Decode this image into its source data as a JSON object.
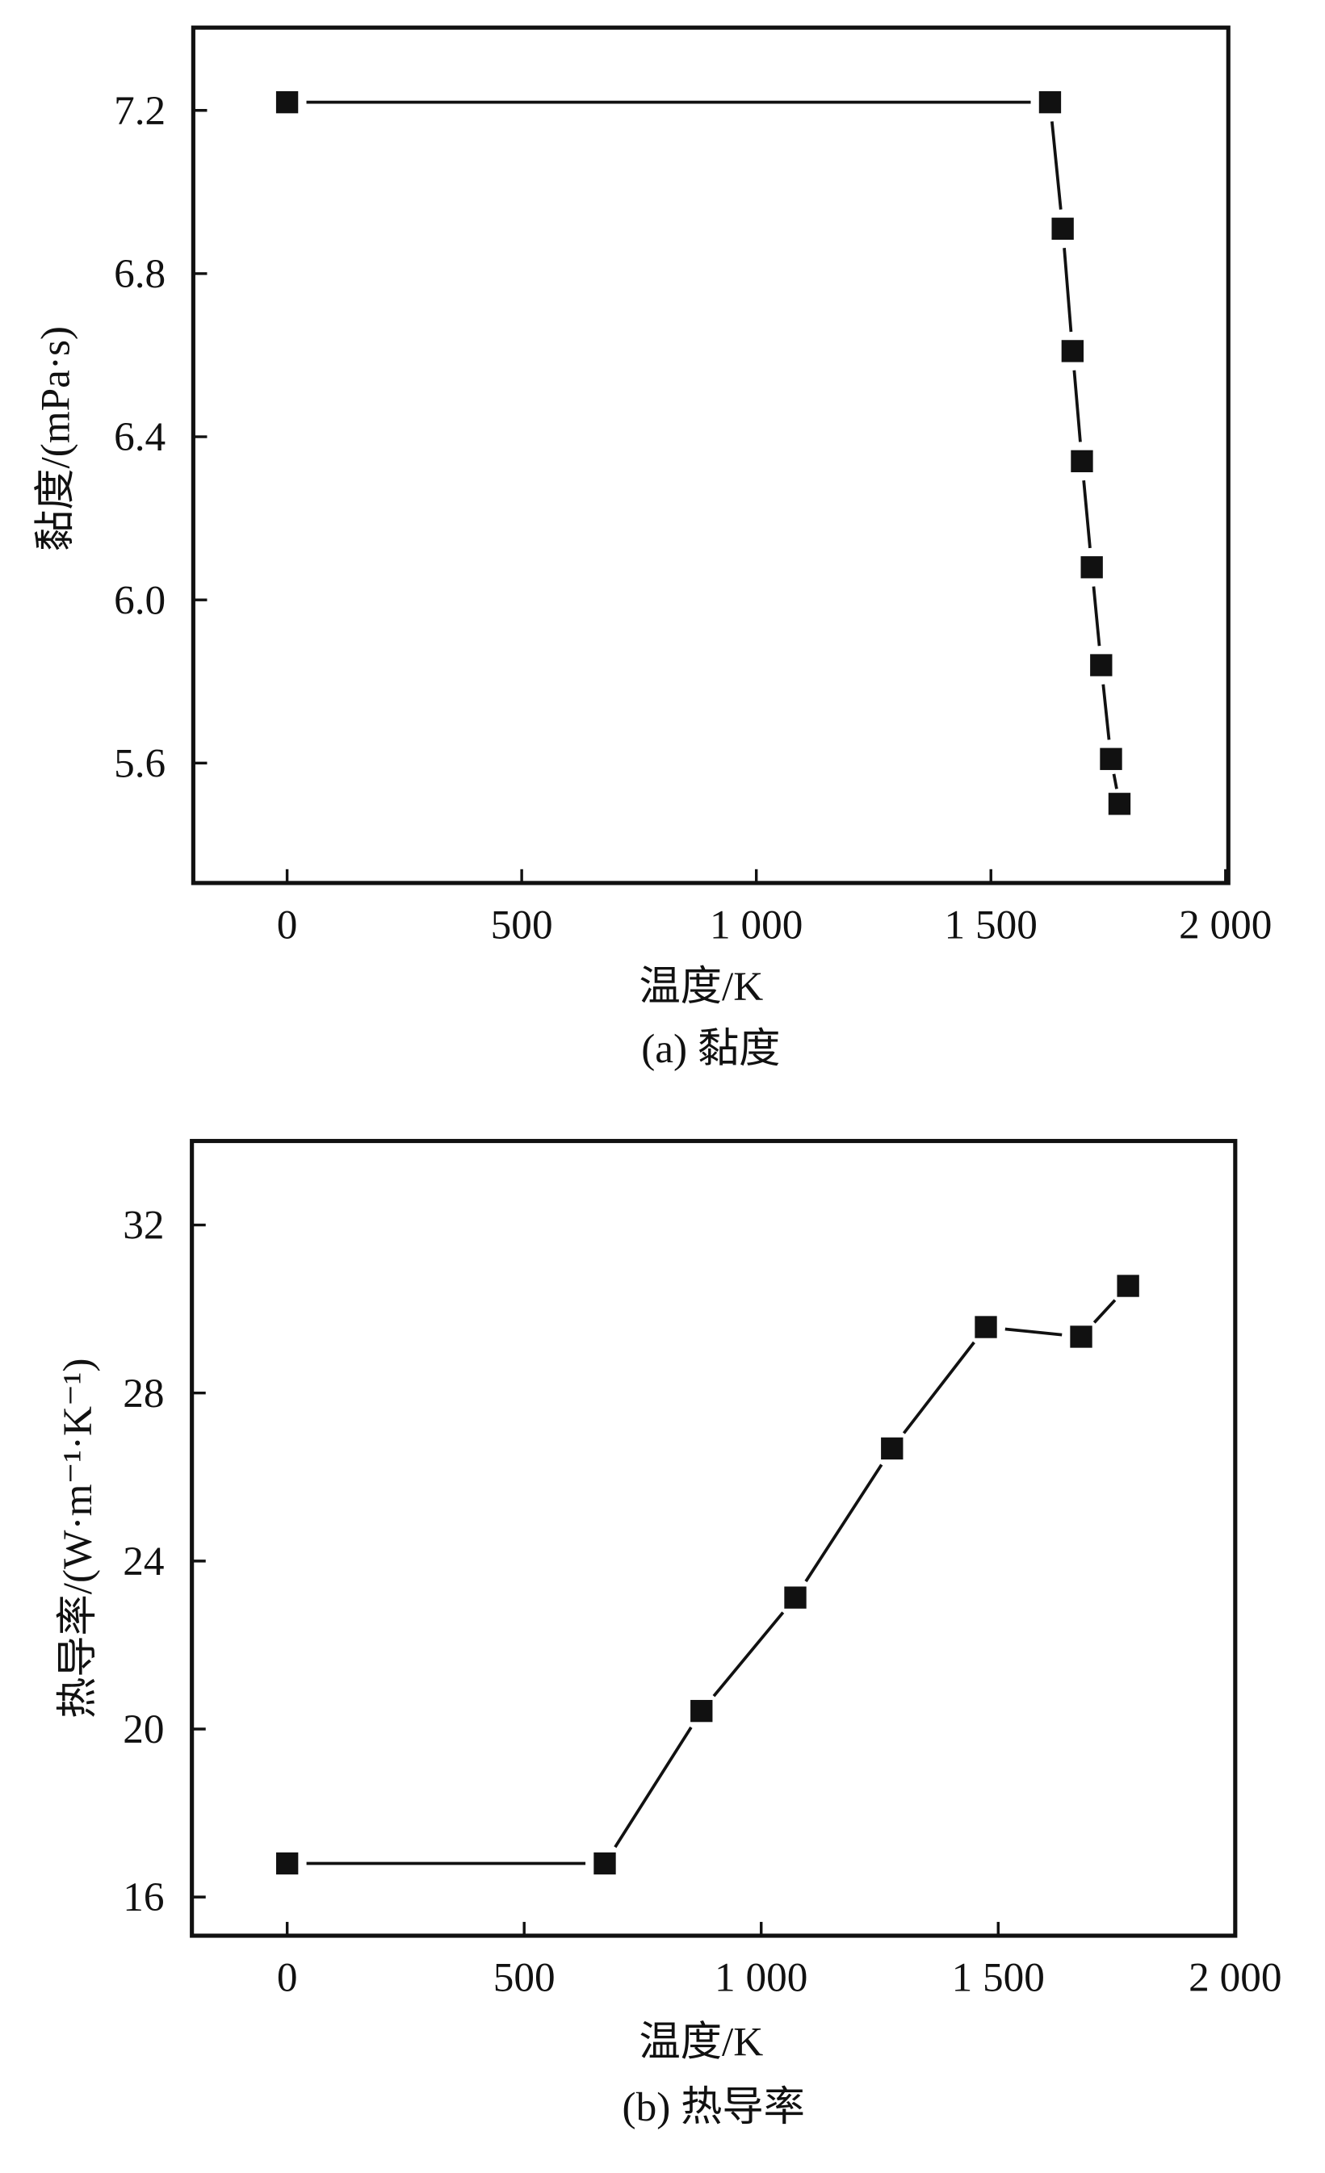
{
  "chart_data": [
    {
      "type": "line",
      "title": "(a) 黏度",
      "xlabel": "温度/K",
      "ylabel": "黏度/(mPa·s)",
      "xlim": [
        -200,
        2006
      ],
      "ylim": [
        5.306,
        7.403
      ],
      "xticks": [
        0,
        500,
        1000,
        1500,
        2000
      ],
      "xtick_labels": [
        "0",
        "500",
        "1 000",
        "1 500",
        "2 000"
      ],
      "yticks": [
        5.6,
        6.0,
        6.4,
        6.8,
        7.2
      ],
      "ytick_labels": [
        "5.6",
        "6.0",
        "6.4",
        "6.8",
        "7.2"
      ],
      "grid": false,
      "series": [
        {
          "name": "黏度",
          "marker": "square",
          "x": [
            0,
            1626,
            1653,
            1674,
            1694,
            1715,
            1735,
            1756,
            1774
          ],
          "y": [
            7.22,
            7.22,
            6.91,
            6.61,
            6.34,
            6.08,
            5.84,
            5.61,
            5.5
          ]
        }
      ]
    },
    {
      "type": "line",
      "title": "(b) 热导率",
      "xlabel": "温度/K",
      "ylabel": "热导率/(W·m⁻¹·K⁻¹)",
      "xlim": [
        -201,
        2000
      ],
      "ylim": [
        15.08,
        34.0
      ],
      "xticks": [
        0,
        500,
        1000,
        1500,
        2000
      ],
      "xtick_labels": [
        "0",
        "500",
        "1 000",
        "1 500",
        "2 000"
      ],
      "yticks": [
        16,
        20,
        24,
        28,
        32
      ],
      "ytick_labels": [
        "16",
        "20",
        "24",
        "28",
        "32"
      ],
      "grid": false,
      "series": [
        {
          "name": "热导率",
          "marker": "square",
          "x": [
            0,
            670,
            874,
            1072,
            1276,
            1474,
            1675,
            1774
          ],
          "y": [
            16.8,
            16.8,
            20.43,
            23.13,
            26.68,
            29.57,
            29.34,
            30.55
          ]
        }
      ]
    }
  ]
}
